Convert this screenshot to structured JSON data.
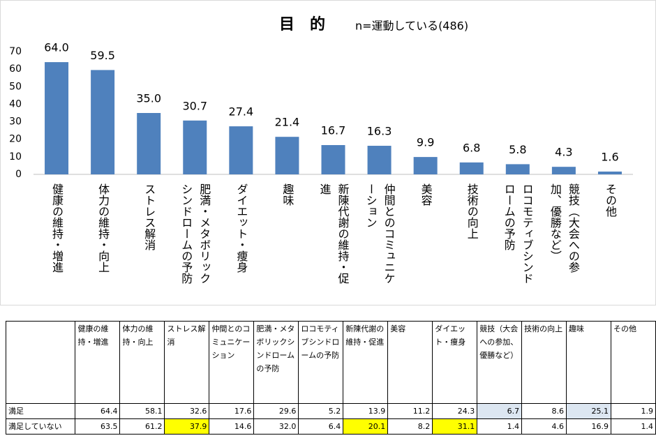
{
  "chart_data": {
    "type": "bar",
    "title": "目　的",
    "subtitle": "n=運動している(486)",
    "categories": [
      "健康の維持・増進",
      "体力の維持・向上",
      "ストレス解消",
      "肥満・メタボリックシンドロームの予防",
      "ダイエット・痩身",
      "趣味",
      "新陳代謝の維持・促進",
      "仲間とのコミュニケーション",
      "美容",
      "技術の向上",
      "ロコモティブシンドロームの予防",
      "競技（大会への参加、優勝など）",
      "その他"
    ],
    "values": [
      64.0,
      59.5,
      35.0,
      30.7,
      27.4,
      21.4,
      16.7,
      16.3,
      9.9,
      6.8,
      5.8,
      4.3,
      1.6
    ],
    "value_labels": [
      "64.0",
      "59.5",
      "35.0",
      "30.7",
      "27.4",
      "21.4",
      "16.7",
      "16.3",
      "9.9",
      "6.8",
      "5.8",
      "4.3",
      "1.6"
    ],
    "color": "#4f81bd",
    "ylim": [
      0,
      70
    ],
    "yticks": [
      0,
      10,
      20,
      30,
      40,
      50,
      60,
      70
    ],
    "grid": false
  },
  "table": {
    "columns": [
      "健康の維持・増進",
      "体力の維持・向上",
      "ストレス解消",
      "仲間とのコミュニケーション",
      "肥満・メタボリックシンドロームの予防",
      "ロコモティブシンドロームの予防",
      "新陳代謝の維持・促進",
      "美容",
      "ダイエット・痩身",
      "競技（大会への参加、優勝など）",
      "技術の向上",
      "趣味",
      "その他"
    ],
    "rows": [
      {
        "label": "満足",
        "values": [
          "64.4",
          "58.1",
          "32.6",
          "17.6",
          "29.6",
          "5.2",
          "13.9",
          "11.2",
          "24.3",
          "6.7",
          "8.6",
          "25.1",
          "1.9"
        ],
        "highlights": [
          null,
          null,
          null,
          null,
          null,
          null,
          null,
          null,
          null,
          "#dce6f1",
          null,
          "#dce6f1",
          null
        ]
      },
      {
        "label": "満足していない",
        "values": [
          "63.5",
          "61.2",
          "37.9",
          "14.6",
          "32.0",
          "6.4",
          "20.1",
          "8.2",
          "31.1",
          "1.4",
          "4.6",
          "16.9",
          "1.4"
        ],
        "highlights": [
          null,
          null,
          "#ffff00",
          null,
          null,
          null,
          "#ffff00",
          null,
          "#ffff00",
          null,
          null,
          null,
          null
        ]
      }
    ]
  }
}
